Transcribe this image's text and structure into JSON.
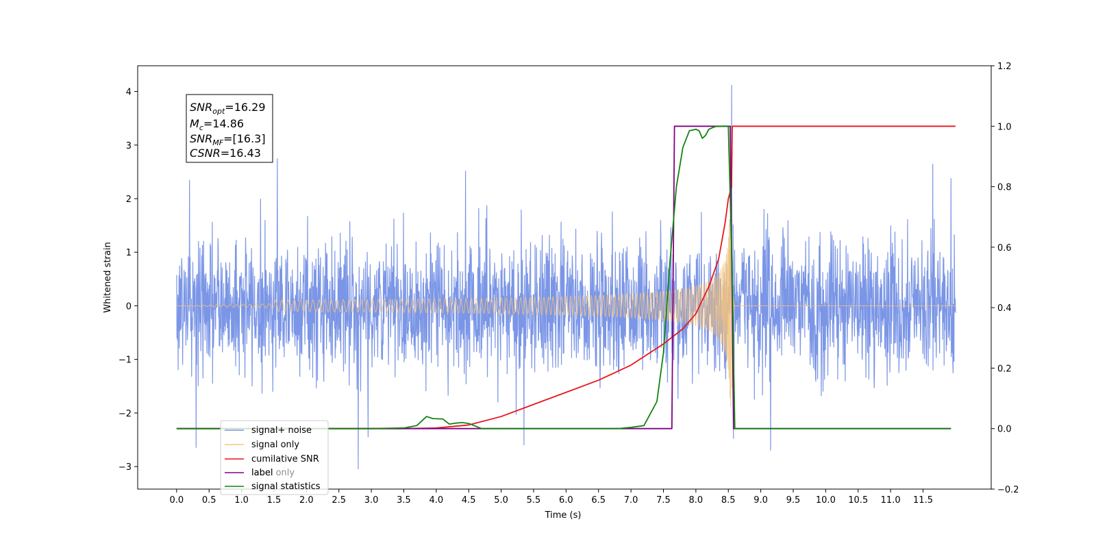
{
  "chart_data": {
    "type": "line",
    "xlabel": "Time (s)",
    "ylabel": "Whitened strain",
    "xlim": [
      -0.6,
      12.55
    ],
    "ylim": [
      -3.42,
      4.48
    ],
    "y2lim": [
      -0.2,
      1.2
    ],
    "x_ticks": [
      0.0,
      0.5,
      1.0,
      1.5,
      2.0,
      2.5,
      3.0,
      3.5,
      4.0,
      4.5,
      5.0,
      5.5,
      6.0,
      6.5,
      7.0,
      7.5,
      8.0,
      8.5,
      9.0,
      9.5,
      10.0,
      10.5,
      11.0,
      11.5
    ],
    "x_tick_labels": [
      "0.0",
      "0.5",
      "1.0",
      "1.5",
      "2.0",
      "2.5",
      "3.0",
      "3.5",
      "4.0",
      "4.5",
      "5.0",
      "5.5",
      "6.0",
      "6.5",
      "7.0",
      "7.5",
      "8.0",
      "8.5",
      "9.0",
      "9.5",
      "10.0",
      "10.5",
      "11.0",
      "11.5"
    ],
    "y_ticks": [
      -3,
      -2,
      -1,
      0,
      1,
      2,
      3,
      4
    ],
    "y_tick_labels": [
      "−3",
      "−2",
      "−1",
      "0",
      "1",
      "2",
      "3",
      "4"
    ],
    "y2_ticks": [
      -0.2,
      0.0,
      0.2,
      0.4,
      0.6,
      0.8,
      1.0,
      1.2
    ],
    "y2_tick_labels": [
      "−0.2",
      "0.0",
      "0.2",
      "0.4",
      "0.6",
      "0.8",
      "1.0",
      "1.2"
    ],
    "grid": false,
    "legend_position": "lower-left",
    "annotation": {
      "lines": [
        {
          "base": "SNR",
          "sub": "opt",
          "value": "=16.29"
        },
        {
          "base": "M",
          "sub": "c",
          "value": "=14.86"
        },
        {
          "base": "SNR",
          "sub": "MF",
          "value": "=[16.3]"
        },
        {
          "base": "CSNR",
          "sub": "",
          "value": "=16.43"
        }
      ]
    },
    "series": [
      {
        "name": "signal+ noise",
        "axis": "left",
        "color": "#7b96e6",
        "kind": "noise",
        "x_range": [
          0.0,
          12.0
        ],
        "spikes": [
          [
            0.2,
            2.35
          ],
          [
            0.3,
            -2.65
          ],
          [
            1.55,
            2.75
          ],
          [
            2.8,
            -3.05
          ],
          [
            2.95,
            -2.45
          ],
          [
            4.45,
            2.52
          ],
          [
            5.35,
            -2.6
          ],
          [
            8.55,
            4.12
          ],
          [
            8.58,
            -2.48
          ],
          [
            8.9,
            -1.75
          ],
          [
            9.15,
            -2.7
          ],
          [
            11.65,
            2.65
          ],
          [
            11.93,
            2.38
          ]
        ]
      },
      {
        "name": "signal only",
        "axis": "left",
        "color": "#f5c27a",
        "kind": "chirp",
        "x_range": [
          0.0,
          12.0
        ],
        "merger_time": 8.55,
        "peak_amplitude": 2.2
      },
      {
        "name": "cumilative SNR",
        "axis": "right",
        "color": "#e8141b",
        "x": [
          0.0,
          3.5,
          4.0,
          4.5,
          5.0,
          5.5,
          6.0,
          6.5,
          7.0,
          7.5,
          7.8,
          8.0,
          8.2,
          8.35,
          8.45,
          8.5,
          8.55,
          8.56,
          9.0,
          12.0
        ],
        "y": [
          0.0,
          0.0,
          0.002,
          0.012,
          0.04,
          0.08,
          0.12,
          0.16,
          0.21,
          0.28,
          0.33,
          0.38,
          0.47,
          0.56,
          0.68,
          0.76,
          0.8,
          1.0,
          1.0,
          1.0
        ]
      },
      {
        "name": "label",
        "axis": "right",
        "color": "#800080",
        "x": [
          0.0,
          7.63,
          7.67,
          8.53,
          8.58,
          11.93
        ],
        "y": [
          0.0,
          0.0,
          1.0,
          1.0,
          0.0,
          0.0
        ]
      },
      {
        "name": "signal statistics",
        "axis": "right",
        "color": "#118211",
        "x": [
          0.0,
          3.0,
          3.5,
          3.7,
          3.85,
          3.95,
          4.1,
          4.2,
          4.3,
          4.4,
          4.5,
          4.7,
          6.8,
          7.0,
          7.2,
          7.3,
          7.4,
          7.5,
          7.6,
          7.7,
          7.8,
          7.9,
          8.0,
          8.05,
          8.1,
          8.15,
          8.2,
          8.3,
          8.4,
          8.5,
          8.55,
          8.6,
          8.65,
          11.93
        ],
        "y": [
          0.0,
          0.0,
          0.002,
          0.01,
          0.04,
          0.033,
          0.032,
          0.015,
          0.018,
          0.02,
          0.017,
          0.0,
          0.0,
          0.004,
          0.01,
          0.05,
          0.09,
          0.25,
          0.55,
          0.8,
          0.93,
          0.985,
          0.99,
          0.985,
          0.96,
          0.97,
          0.99,
          0.999,
          1.0,
          1.0,
          0.6,
          0.0,
          0.0,
          0.0
        ]
      }
    ],
    "legend_entries": [
      {
        "label": "signal+ noise",
        "color": "#7b96e6"
      },
      {
        "label": "signal only",
        "color": "#f5c27a"
      },
      {
        "label": "cumilative SNR",
        "color": "#e8141b"
      },
      {
        "label": "label",
        "color": "#800080"
      },
      {
        "label": "signal statistics",
        "color": "#118211"
      }
    ],
    "legend_overlap_labels": [
      "label only",
      "signal statistics"
    ]
  }
}
